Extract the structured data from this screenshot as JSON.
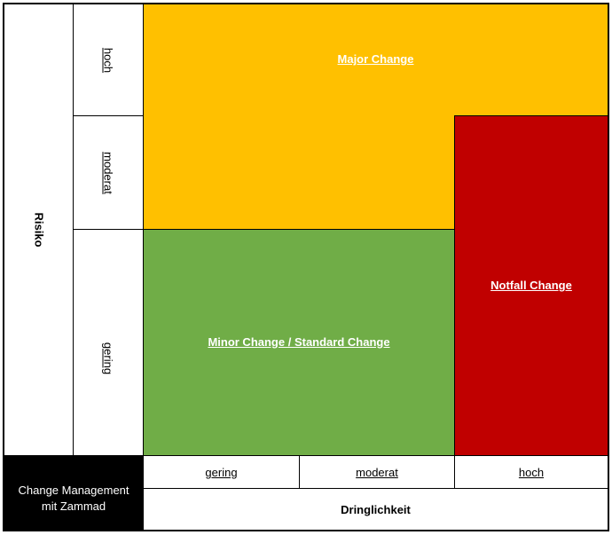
{
  "axes": {
    "risk_title": "Risiko",
    "urgency_title": "Dringlichkeit",
    "risk_levels": {
      "high": "hoch",
      "moderate": "moderat",
      "low": "gering"
    },
    "urgency_levels": {
      "low": "gering",
      "moderate": "moderat",
      "high": "hoch"
    }
  },
  "zones": {
    "major": {
      "label": "Major Change",
      "color": "#ffc000"
    },
    "minor": {
      "label": "Minor Change / Standard Change",
      "color": "#70ad47"
    },
    "emergency": {
      "label": "Notfall Change",
      "color": "#c00000"
    }
  },
  "corner": {
    "line1": "Change Management",
    "line2": "mit Zammad"
  }
}
